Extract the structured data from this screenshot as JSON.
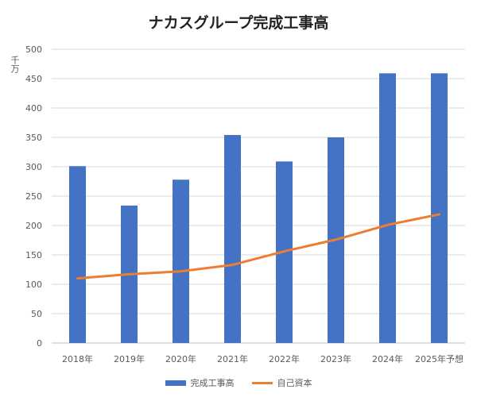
{
  "chart_data": {
    "type": "bar+line",
    "title": "ナカスグループ完成工事高",
    "ylabel": "千万",
    "xlabel": "",
    "ylim": [
      0,
      500
    ],
    "yticks": [
      0,
      50,
      100,
      150,
      200,
      250,
      300,
      350,
      400,
      450,
      500
    ],
    "grid": true,
    "legend": "bottom",
    "categories": [
      "2018年",
      "2019年",
      "2020年",
      "2021年",
      "2022年",
      "2023年",
      "2024年",
      "2025年予想"
    ],
    "series": [
      {
        "name": "完成工事高",
        "type": "bar",
        "color": "#4472c4",
        "values": [
          301,
          234,
          278,
          354,
          309,
          350,
          459,
          459
        ]
      },
      {
        "name": "自己資本",
        "type": "line",
        "color": "#ed7d31",
        "values": [
          110,
          117,
          122,
          133,
          156,
          176,
          201,
          219
        ]
      }
    ]
  }
}
